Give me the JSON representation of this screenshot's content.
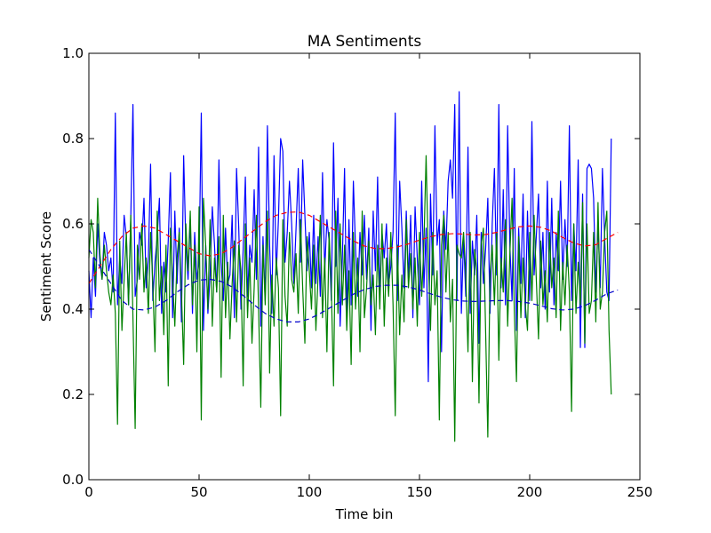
{
  "chart_data": {
    "type": "line",
    "title": "MA Sentiments",
    "xlabel": "Time bin",
    "ylabel": "Sentiment Score",
    "xlim": [
      0,
      250
    ],
    "ylim": [
      0.0,
      1.0
    ],
    "xticks": [
      "0",
      "50",
      "100",
      "150",
      "200",
      "250"
    ],
    "yticks": [
      "0.0",
      "0.2",
      "0.4",
      "0.6",
      "0.8",
      "1.0"
    ],
    "grid": false,
    "legend": "none",
    "series": [
      {
        "color": "#0000ff",
        "style": "solid",
        "x_start": 0,
        "x_step": 1,
        "values": [
          0.49,
          0.38,
          0.52,
          0.43,
          0.6,
          0.51,
          0.47,
          0.58,
          0.55,
          0.49,
          0.52,
          0.44,
          0.86,
          0.41,
          0.52,
          0.46,
          0.62,
          0.57,
          0.41,
          0.61,
          0.88,
          0.43,
          0.47,
          0.58,
          0.55,
          0.66,
          0.45,
          0.52,
          0.74,
          0.42,
          0.51,
          0.57,
          0.66,
          0.39,
          0.51,
          0.44,
          0.56,
          0.72,
          0.38,
          0.63,
          0.46,
          0.59,
          0.37,
          0.76,
          0.55,
          0.47,
          0.61,
          0.39,
          0.58,
          0.47,
          0.51,
          0.86,
          0.35,
          0.55,
          0.39,
          0.48,
          0.64,
          0.55,
          0.44,
          0.75,
          0.51,
          0.42,
          0.59,
          0.46,
          0.48,
          0.62,
          0.38,
          0.73,
          0.59,
          0.4,
          0.54,
          0.71,
          0.43,
          0.55,
          0.51,
          0.68,
          0.47,
          0.78,
          0.36,
          0.57,
          0.42,
          0.83,
          0.55,
          0.39,
          0.76,
          0.48,
          0.61,
          0.8,
          0.77,
          0.51,
          0.58,
          0.7,
          0.6,
          0.46,
          0.59,
          0.73,
          0.51,
          0.75,
          0.62,
          0.49,
          0.58,
          0.45,
          0.62,
          0.46,
          0.57,
          0.43,
          0.72,
          0.49,
          0.61,
          0.56,
          0.42,
          0.79,
          0.5,
          0.66,
          0.36,
          0.52,
          0.73,
          0.38,
          0.61,
          0.41,
          0.7,
          0.54,
          0.43,
          0.58,
          0.48,
          0.62,
          0.47,
          0.59,
          0.35,
          0.63,
          0.49,
          0.71,
          0.44,
          0.58,
          0.52,
          0.6,
          0.46,
          0.5,
          0.58,
          0.86,
          0.42,
          0.7,
          0.59,
          0.45,
          0.63,
          0.47,
          0.62,
          0.38,
          0.64,
          0.52,
          0.41,
          0.7,
          0.45,
          0.59,
          0.23,
          0.67,
          0.48,
          0.83,
          0.55,
          0.61,
          0.3,
          0.63,
          0.54,
          0.7,
          0.75,
          0.66,
          0.88,
          0.42,
          0.91,
          0.39,
          0.57,
          0.43,
          0.78,
          0.39,
          0.56,
          0.48,
          0.62,
          0.32,
          0.58,
          0.46,
          0.54,
          0.66,
          0.39,
          0.6,
          0.73,
          0.48,
          0.88,
          0.45,
          0.68,
          0.41,
          0.83,
          0.55,
          0.42,
          0.73,
          0.35,
          0.59,
          0.46,
          0.67,
          0.38,
          0.63,
          0.42,
          0.84,
          0.48,
          0.57,
          0.67,
          0.45,
          0.58,
          0.4,
          0.7,
          0.44,
          0.66,
          0.41,
          0.58,
          0.49,
          0.7,
          0.47,
          0.61,
          0.5,
          0.83,
          0.42,
          0.6,
          0.49,
          0.75,
          0.31,
          0.67,
          0.31,
          0.73,
          0.74,
          0.73,
          0.66,
          0.44,
          0.6,
          0.45,
          0.73,
          0.57,
          0.44,
          0.42,
          0.8
        ]
      },
      {
        "color": "#008000",
        "style": "solid",
        "x_start": 0,
        "x_step": 1,
        "values": [
          0.52,
          0.61,
          0.58,
          0.45,
          0.66,
          0.53,
          0.47,
          0.55,
          0.49,
          0.44,
          0.41,
          0.48,
          0.39,
          0.13,
          0.56,
          0.35,
          0.47,
          0.58,
          0.41,
          0.62,
          0.38,
          0.12,
          0.55,
          0.47,
          0.6,
          0.44,
          0.52,
          0.39,
          0.58,
          0.46,
          0.3,
          0.63,
          0.42,
          0.5,
          0.34,
          0.55,
          0.22,
          0.59,
          0.47,
          0.36,
          0.52,
          0.58,
          0.44,
          0.27,
          0.6,
          0.49,
          0.63,
          0.41,
          0.55,
          0.3,
          0.64,
          0.14,
          0.66,
          0.55,
          0.4,
          0.61,
          0.36,
          0.52,
          0.44,
          0.57,
          0.24,
          0.62,
          0.38,
          0.51,
          0.33,
          0.46,
          0.56,
          0.37,
          0.55,
          0.49,
          0.22,
          0.6,
          0.38,
          0.52,
          0.32,
          0.45,
          0.62,
          0.4,
          0.17,
          0.55,
          0.41,
          0.63,
          0.25,
          0.48,
          0.36,
          0.52,
          0.45,
          0.15,
          0.61,
          0.43,
          0.36,
          0.58,
          0.47,
          0.44,
          0.53,
          0.39,
          0.61,
          0.45,
          0.32,
          0.57,
          0.49,
          0.4,
          0.55,
          0.35,
          0.48,
          0.62,
          0.38,
          0.52,
          0.3,
          0.58,
          0.45,
          0.22,
          0.63,
          0.39,
          0.6,
          0.41,
          0.55,
          0.35,
          0.49,
          0.27,
          0.58,
          0.4,
          0.52,
          0.3,
          0.63,
          0.38,
          0.45,
          0.56,
          0.41,
          0.48,
          0.34,
          0.55,
          0.4,
          0.6,
          0.36,
          0.52,
          0.43,
          0.58,
          0.41,
          0.15,
          0.55,
          0.34,
          0.48,
          0.37,
          0.61,
          0.45,
          0.53,
          0.4,
          0.52,
          0.36,
          0.58,
          0.43,
          0.55,
          0.76,
          0.52,
          0.35,
          0.58,
          0.41,
          0.49,
          0.14,
          0.55,
          0.62,
          0.44,
          0.58,
          0.37,
          0.47,
          0.09,
          0.55,
          0.53,
          0.52,
          0.58,
          0.48,
          0.3,
          0.58,
          0.23,
          0.54,
          0.49,
          0.18,
          0.55,
          0.59,
          0.35,
          0.1,
          0.48,
          0.55,
          0.41,
          0.58,
          0.28,
          0.52,
          0.44,
          0.61,
          0.36,
          0.53,
          0.66,
          0.4,
          0.23,
          0.57,
          0.38,
          0.52,
          0.41,
          0.35,
          0.58,
          0.42,
          0.62,
          0.47,
          0.33,
          0.56,
          0.41,
          0.49,
          0.37,
          0.58,
          0.45,
          0.52,
          0.38,
          0.63,
          0.35,
          0.51,
          0.41,
          0.55,
          0.44,
          0.16,
          0.6,
          0.39,
          0.51,
          0.41,
          0.65,
          0.32,
          0.6,
          0.39,
          0.42,
          0.58,
          0.37,
          0.65,
          0.4,
          0.44,
          0.58,
          0.63,
          0.35,
          0.2
        ]
      },
      {
        "color": "#ff0000",
        "style": "dashed",
        "x_start": 0,
        "x_step": 5,
        "values": [
          0.46,
          0.5,
          0.54,
          0.57,
          0.59,
          0.595,
          0.59,
          0.575,
          0.56,
          0.545,
          0.53,
          0.525,
          0.53,
          0.545,
          0.565,
          0.585,
          0.605,
          0.62,
          0.627,
          0.628,
          0.62,
          0.605,
          0.59,
          0.575,
          0.56,
          0.548,
          0.542,
          0.542,
          0.546,
          0.553,
          0.562,
          0.57,
          0.575,
          0.577,
          0.576,
          0.574,
          0.575,
          0.58,
          0.587,
          0.593,
          0.595,
          0.592,
          0.583,
          0.568,
          0.555,
          0.548,
          0.551,
          0.566,
          0.58
        ]
      },
      {
        "color": "#0000cc",
        "style": "dashed",
        "x_start": 0,
        "x_step": 5,
        "values": [
          0.54,
          0.5,
          0.46,
          0.42,
          0.4,
          0.398,
          0.405,
          0.42,
          0.44,
          0.457,
          0.468,
          0.47,
          0.465,
          0.452,
          0.432,
          0.41,
          0.39,
          0.377,
          0.37,
          0.37,
          0.377,
          0.39,
          0.405,
          0.42,
          0.435,
          0.446,
          0.453,
          0.456,
          0.456,
          0.452,
          0.445,
          0.436,
          0.428,
          0.422,
          0.419,
          0.418,
          0.419,
          0.42,
          0.42,
          0.418,
          0.414,
          0.408,
          0.401,
          0.398,
          0.4,
          0.408,
          0.421,
          0.436,
          0.445
        ]
      }
    ]
  }
}
